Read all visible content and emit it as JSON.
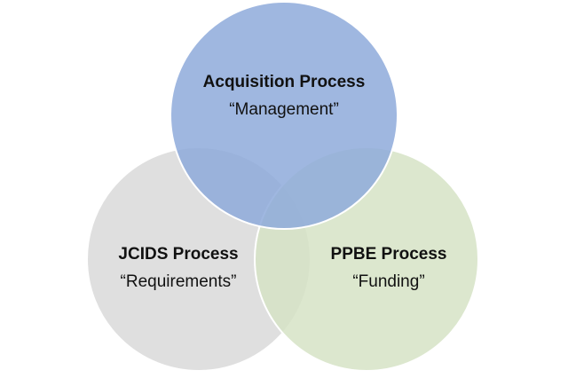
{
  "circles": [
    {
      "id": "acquisition",
      "title": "Acquisition Process",
      "subtitle": "“Management”",
      "fill": "#8eaadb"
    },
    {
      "id": "jcids",
      "title": "JCIDS Process",
      "subtitle": "“Requirements”",
      "fill": "#d9d9d9"
    },
    {
      "id": "ppbe",
      "title": "PPBE Process",
      "subtitle": "“Funding”",
      "fill": "#d6e3c6"
    }
  ]
}
